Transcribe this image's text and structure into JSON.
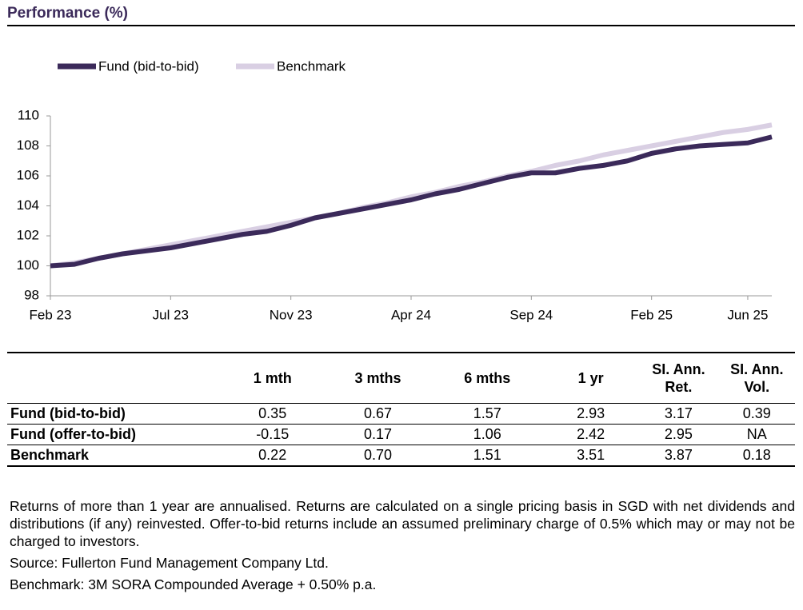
{
  "header": {
    "title": "Performance (%)"
  },
  "chart_data": {
    "type": "line",
    "categories": [
      "Feb 23",
      null,
      null,
      null,
      null,
      "Jul 23",
      null,
      null,
      null,
      null,
      "Nov 23",
      null,
      null,
      null,
      null,
      "Apr 24",
      null,
      null,
      null,
      null,
      "Sep 24",
      null,
      null,
      null,
      null,
      "Feb 25",
      null,
      null,
      null,
      "Jun 25",
      null
    ],
    "series": [
      {
        "name": "Fund (bid-to-bid)",
        "color": "#3b2a5a",
        "values": [
          100.0,
          100.1,
          100.5,
          100.8,
          101.0,
          101.2,
          101.5,
          101.8,
          102.1,
          102.3,
          102.7,
          103.2,
          103.5,
          103.8,
          104.1,
          104.4,
          104.8,
          105.1,
          105.5,
          105.9,
          106.2,
          106.2,
          106.5,
          106.7,
          107.0,
          107.5,
          107.8,
          108.0,
          108.1,
          108.2,
          108.6
        ]
      },
      {
        "name": "Benchmark",
        "color": "#d9cfe3",
        "values": [
          100.0,
          100.2,
          100.5,
          100.8,
          101.1,
          101.4,
          101.7,
          102.0,
          102.3,
          102.6,
          102.9,
          103.2,
          103.5,
          103.9,
          104.2,
          104.6,
          104.9,
          105.3,
          105.6,
          106.0,
          106.3,
          106.7,
          107.0,
          107.4,
          107.7,
          108.0,
          108.3,
          108.6,
          108.9,
          109.1,
          109.4
        ]
      }
    ],
    "ylim": [
      98,
      110
    ],
    "yticks": [
      98,
      100,
      102,
      104,
      106,
      108,
      110
    ],
    "legend": "top-left"
  },
  "table": {
    "columns": [
      "1 mth",
      "3 mths",
      "6 mths",
      "1 yr",
      "SI. Ann. Ret.",
      "SI. Ann. Vol."
    ],
    "rows": [
      {
        "label": "Fund (bid-to-bid)",
        "values": [
          "0.35",
          "0.67",
          "1.57",
          "2.93",
          "3.17",
          "0.39"
        ]
      },
      {
        "label": "Fund (offer-to-bid)",
        "values": [
          "-0.15",
          "0.17",
          "1.06",
          "2.42",
          "2.95",
          "NA"
        ]
      },
      {
        "label": "Benchmark",
        "values": [
          "0.22",
          "0.70",
          "1.51",
          "3.51",
          "3.87",
          "0.18"
        ]
      }
    ]
  },
  "notes": [
    "Returns of more than 1 year are annualised. Returns are calculated on a single pricing basis in SGD with net dividends and distributions (if any) reinvested. Offer-to-bid returns include an assumed preliminary charge of 0.5% which may or may not be charged to investors.",
    "Source: Fullerton Fund Management Company Ltd.",
    "Benchmark: 3M SORA Compounded Average + 0.50% p.a."
  ]
}
